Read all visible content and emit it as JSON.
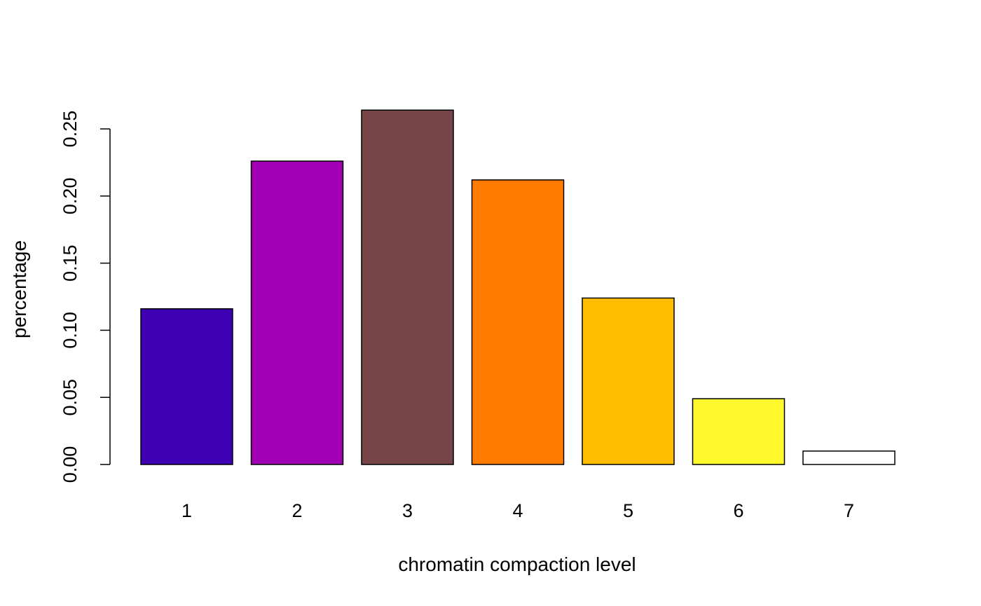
{
  "chart_data": {
    "type": "bar",
    "title": "",
    "xlabel": "chromatin compaction level",
    "ylabel": "percentage",
    "categories": [
      "1",
      "2",
      "3",
      "4",
      "5",
      "6",
      "7"
    ],
    "values": [
      0.116,
      0.226,
      0.264,
      0.212,
      0.124,
      0.049,
      0.01
    ],
    "colors": [
      "#3F00B4",
      "#A100B5",
      "#774548",
      "#FF7C00",
      "#FFBD00",
      "#FFF92D",
      "#FFFFFF"
    ],
    "ylim": [
      0,
      0.25
    ],
    "yticks": [
      "0.00",
      "0.05",
      "0.10",
      "0.15",
      "0.20",
      "0.25"
    ],
    "grid": false,
    "legend": false
  }
}
